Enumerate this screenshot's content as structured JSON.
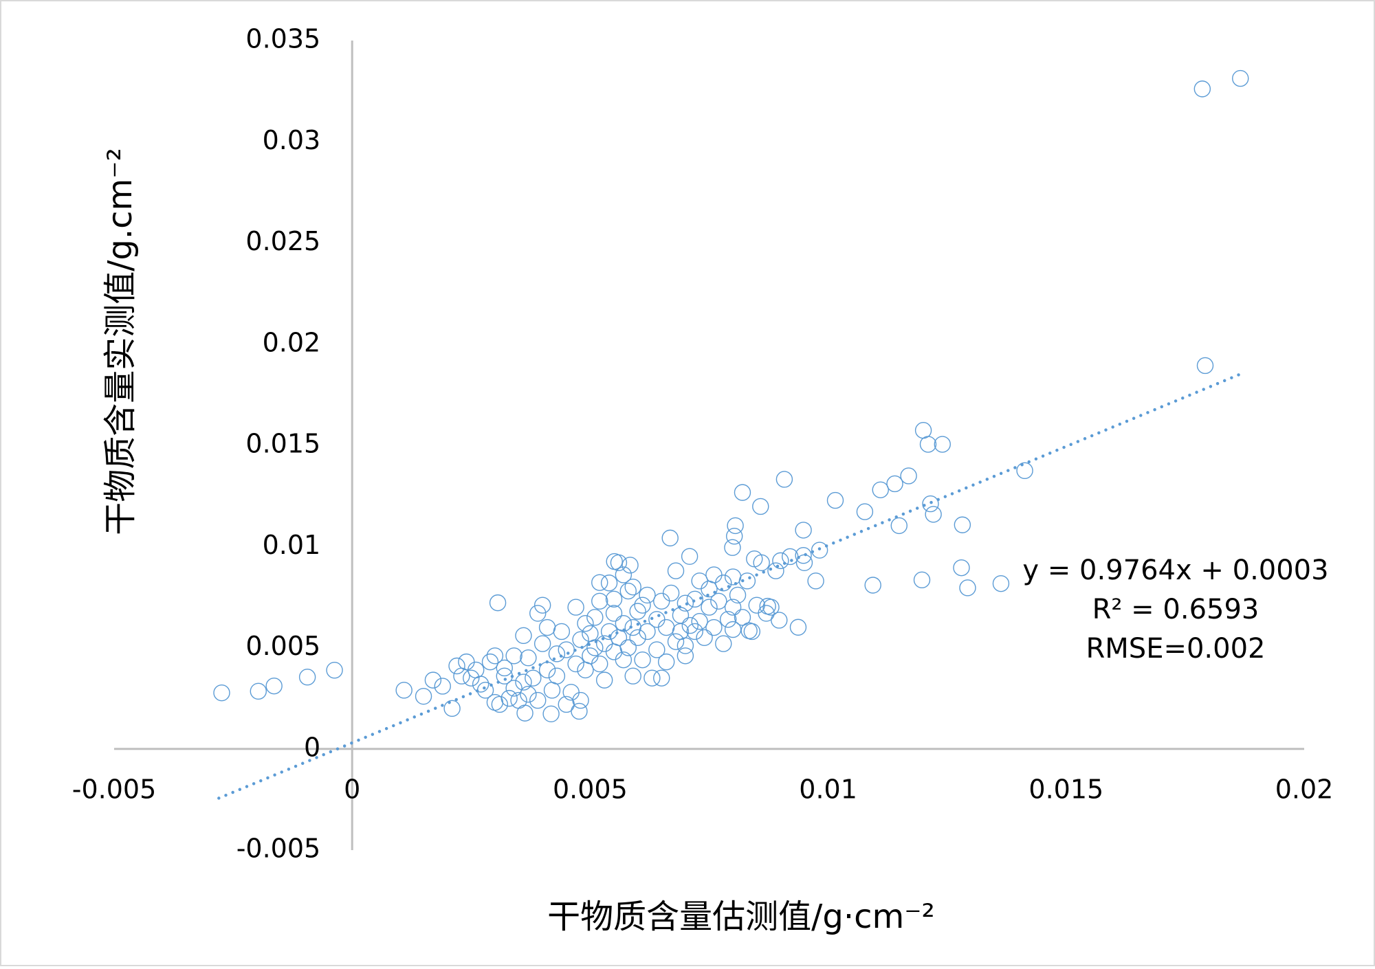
{
  "chart_data": {
    "type": "scatter",
    "xlabel": "干物质含量估测值/g·cm⁻²",
    "ylabel": "干物质含量实测值/g.cm⁻²",
    "annotations": [
      "y = 0.9764x + 0.0003",
      "R² = 0.6593",
      "RMSE=0.002"
    ],
    "color": "#5b9bd5",
    "xlim": [
      -0.005,
      0.02
    ],
    "xticks": [
      -0.005,
      0,
      0.005,
      0.01,
      0.015,
      0.02
    ],
    "ylim": [
      -0.005,
      0.035
    ],
    "yticks": [
      -0.005,
      0,
      0.005,
      0.01,
      0.015,
      0.02,
      0.025,
      0.03,
      0.035
    ],
    "grid": false,
    "trendline": {
      "slope": 0.9764,
      "intercept": 0.0003,
      "x": [
        -0.0028,
        0.0187
      ]
    },
    "x": [
      0.01786,
      0.01866,
      0.01792,
      -0.00274,
      -0.00197,
      -0.00164,
      -0.00094,
      -0.00037,
      0.01413,
      0.01363,
      0.01293,
      0.0128,
      0.01282,
      0.0124,
      0.0121,
      0.012,
      0.01221,
      0.01215,
      0.01197,
      0.01169,
      0.0114,
      0.01149,
      0.0111,
      0.01077,
      0.01094,
      0.01015,
      0.00982,
      0.00974,
      0.00948,
      0.00948,
      0.00937,
      0.00908,
      0.00897,
      0.00858,
      0.0082,
      0.00805,
      0.00803,
      0.00799,
      0.00845,
      0.00873,
      0.00834,
      0.00668,
      0.00709,
      0.00584,
      0.00551,
      0.0052,
      0.00306,
      0.00477,
      0.00418,
      0.00363,
      0.00109,
      0.0015,
      0.0017,
      0.0019,
      0.0021,
      0.0022,
      0.0024,
      0.0025,
      0.0026,
      0.0027,
      0.0028,
      0.0029,
      0.003,
      0.003,
      0.0031,
      0.0032,
      0.0033,
      0.0034,
      0.0034,
      0.0035,
      0.0036,
      0.0036,
      0.0037,
      0.0037,
      0.0038,
      0.0039,
      0.0039,
      0.004,
      0.004,
      0.0041,
      0.0041,
      0.0042,
      0.0043,
      0.0044,
      0.0045,
      0.0046,
      0.0047,
      0.0047,
      0.0048,
      0.0048,
      0.0049,
      0.0049,
      0.005,
      0.005,
      0.0051,
      0.0052,
      0.0052,
      0.0053,
      0.0053,
      0.0054,
      0.0054,
      0.0055,
      0.0055,
      0.0056,
      0.0056,
      0.0057,
      0.0057,
      0.0057,
      0.0058,
      0.0058,
      0.0059,
      0.0059,
      0.006,
      0.006,
      0.0061,
      0.0062,
      0.0062,
      0.0063,
      0.0064,
      0.0064,
      0.0065,
      0.0065,
      0.0066,
      0.0066,
      0.0067,
      0.0068,
      0.0068,
      0.0069,
      0.007,
      0.007,
      0.0071,
      0.0072,
      0.0072,
      0.0073,
      0.0073,
      0.0074,
      0.0075,
      0.0075,
      0.0076,
      0.0076,
      0.0077,
      0.0078,
      0.0078,
      0.0079,
      0.008,
      0.008,
      0.008,
      0.0081,
      0.0082,
      0.0083,
      0.0084,
      0.0085,
      0.0086,
      0.0087,
      0.0088,
      0.0089,
      0.009,
      0.0092,
      0.0095,
      0.0045,
      0.0032,
      0.0023,
      0.0055,
      0.0061,
      0.0069,
      0.0043,
      0.0051,
      0.0059,
      0.007
    ],
    "values": [
      0.03261,
      0.03313,
      0.01894,
      0.00277,
      0.00285,
      0.00311,
      0.00355,
      0.00389,
      0.01375,
      0.00817,
      0.00796,
      0.00895,
      0.01107,
      0.01505,
      0.01505,
      0.01574,
      0.01159,
      0.01211,
      0.00835,
      0.01349,
      0.0131,
      0.01103,
      0.0128,
      0.01172,
      0.00809,
      0.01228,
      0.00982,
      0.0083,
      0.00956,
      0.01081,
      0.00601,
      0.01332,
      0.00636,
      0.01198,
      0.01267,
      0.01103,
      0.01051,
      0.00995,
      0.00939,
      0.00705,
      0.00584,
      0.01042,
      0.00951,
      0.00908,
      0.00926,
      0.00822,
      0.00722,
      0.00186,
      0.00173,
      0.00177,
      0.0029,
      0.0026,
      0.0034,
      0.0031,
      0.002,
      0.0041,
      0.0043,
      0.0035,
      0.0039,
      0.0032,
      0.0029,
      0.0043,
      0.0046,
      0.0023,
      0.0022,
      0.0036,
      0.0025,
      0.0046,
      0.003,
      0.0024,
      0.0033,
      0.0056,
      0.0027,
      0.0045,
      0.0035,
      0.0024,
      0.0067,
      0.0071,
      0.0052,
      0.0039,
      0.006,
      0.0029,
      0.0036,
      0.0058,
      0.0049,
      0.0028,
      0.007,
      0.0042,
      0.0024,
      0.0054,
      0.0062,
      0.0039,
      0.0057,
      0.0046,
      0.0065,
      0.0073,
      0.0042,
      0.0052,
      0.0034,
      0.0082,
      0.0058,
      0.0067,
      0.0048,
      0.0092,
      0.0055,
      0.0086,
      0.0062,
      0.0044,
      0.0078,
      0.005,
      0.006,
      0.0036,
      0.0068,
      0.0055,
      0.0044,
      0.0076,
      0.0058,
      0.0035,
      0.0064,
      0.0049,
      0.0073,
      0.0035,
      0.006,
      0.0043,
      0.0077,
      0.0053,
      0.0088,
      0.0066,
      0.0051,
      0.0072,
      0.0061,
      0.0074,
      0.0058,
      0.0083,
      0.0063,
      0.0055,
      0.0079,
      0.007,
      0.0086,
      0.006,
      0.0073,
      0.0052,
      0.0082,
      0.0064,
      0.0085,
      0.007,
      0.0059,
      0.0076,
      0.0065,
      0.0083,
      0.0058,
      0.0071,
      0.0092,
      0.0067,
      0.007,
      0.0088,
      0.0093,
      0.0095,
      0.0092,
      0.0022,
      0.004,
      0.0036,
      0.0074,
      0.0071,
      0.0058,
      0.0047,
      0.005,
      0.008,
      0.0046
    ]
  }
}
